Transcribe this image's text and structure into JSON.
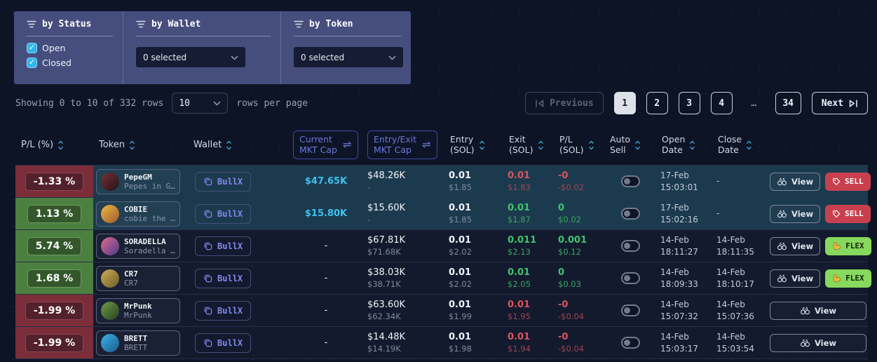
{
  "filters": {
    "status": {
      "title": "by Status",
      "options": [
        {
          "label": "Open",
          "checked": true
        },
        {
          "label": "Closed",
          "checked": true
        }
      ]
    },
    "wallet": {
      "title": "by Wallet",
      "selected": "0 selected"
    },
    "token": {
      "title": "by Token",
      "selected": "0 selected"
    }
  },
  "pagination": {
    "summary": "Showing 0 to 10 of 332 rows",
    "page_size": "10",
    "rows_per_page_label": "rows per page",
    "previous_label": "Previous",
    "next_label": "Next",
    "pages": [
      "1",
      "2",
      "3",
      "4",
      "…",
      "34"
    ],
    "active_page": "1"
  },
  "table": {
    "headers": {
      "pl_pct": "P/L (%)",
      "token": "Token",
      "wallet": "Wallet",
      "current_mkt_cap": {
        "line1": "Current",
        "line2": "MKT Cap",
        "swap_icon": "⇌"
      },
      "entry_exit_mkt_cap": {
        "line1": "Entry/Exit",
        "line2": "MKT Cap",
        "swap_icon": "⇌"
      },
      "entry": {
        "line1": "Entry",
        "line2": "(SOL)"
      },
      "exit": {
        "line1": "Exit",
        "line2": "(SOL)"
      },
      "pl_sol": {
        "line1": "P/L",
        "line2": "(SOL)"
      },
      "auto_sell": {
        "line1": "Auto",
        "line2": "Sell"
      },
      "open_date": {
        "line1": "Open",
        "line2": "Date"
      },
      "close_date": {
        "line1": "Close",
        "line2": "Date"
      }
    },
    "rows": [
      {
        "pl_pct": "-1.33 %",
        "direction": "neg",
        "status": "open",
        "token": {
          "symbol": "PepeGM",
          "name": "Pepes in G…",
          "avatar_colors": [
            "#7a3038",
            "#201318"
          ]
        },
        "wallet": "BullX",
        "current_mkt_cap": "$47.65K",
        "entry_exit_cap": {
          "main": "$48.26K",
          "sub": "-"
        },
        "entry": {
          "sol": "0.01",
          "usd": "$1.85"
        },
        "exit": {
          "sol": "0.01",
          "usd": "$1.83"
        },
        "pl": {
          "sol": "-0",
          "usd": "-$0.02"
        },
        "auto_sell": false,
        "open_date": {
          "date": "17-Feb",
          "time": "15:03:01"
        },
        "close_date": {
          "date": "-",
          "time": ""
        },
        "actions": {
          "view": "View",
          "trade": "SELL",
          "trade_type": "sell"
        }
      },
      {
        "pl_pct": "1.13 %",
        "direction": "pos",
        "status": "open",
        "token": {
          "symbol": "COBIE",
          "name": "cobie the …",
          "avatar_colors": [
            "#efb93f",
            "#9c5a33"
          ]
        },
        "wallet": "BullX",
        "current_mkt_cap": "$15.80K",
        "entry_exit_cap": {
          "main": "$15.60K",
          "sub": "-"
        },
        "entry": {
          "sol": "0.01",
          "usd": "$1.85"
        },
        "exit": {
          "sol": "0.01",
          "usd": "$1.87"
        },
        "pl": {
          "sol": "0",
          "usd": "$0.02"
        },
        "auto_sell": false,
        "open_date": {
          "date": "17-Feb",
          "time": "15:02:16"
        },
        "close_date": {
          "date": "-",
          "time": ""
        },
        "actions": {
          "view": "View",
          "trade": "SELL",
          "trade_type": "sell"
        }
      },
      {
        "pl_pct": "5.74 %",
        "direction": "pos",
        "status": "closed",
        "token": {
          "symbol": "SORADELLA",
          "name": "Soradella …",
          "avatar_colors": [
            "#e06a90",
            "#4a3a8a"
          ]
        },
        "wallet": "BullX",
        "current_mkt_cap": "-",
        "entry_exit_cap": {
          "main": "$67.81K",
          "sub": "$71.68K"
        },
        "entry": {
          "sol": "0.01",
          "usd": "$2.02"
        },
        "exit": {
          "sol": "0.011",
          "usd": "$2.13"
        },
        "pl": {
          "sol": "0.001",
          "usd": "$0.12"
        },
        "auto_sell": false,
        "open_date": {
          "date": "14-Feb",
          "time": "18:11:27"
        },
        "close_date": {
          "date": "14-Feb",
          "time": "18:11:35"
        },
        "actions": {
          "view": "View",
          "trade": "FLEX",
          "trade_type": "flex"
        }
      },
      {
        "pl_pct": "1.68 %",
        "direction": "pos",
        "status": "closed",
        "token": {
          "symbol": "CR7",
          "name": "CR7",
          "avatar_colors": [
            "#cfae55",
            "#6b5a2a"
          ]
        },
        "wallet": "BullX",
        "current_mkt_cap": "-",
        "entry_exit_cap": {
          "main": "$38.03K",
          "sub": "$38.71K"
        },
        "entry": {
          "sol": "0.01",
          "usd": "$2.02"
        },
        "exit": {
          "sol": "0.01",
          "usd": "$2.05"
        },
        "pl": {
          "sol": "0",
          "usd": "$0.03"
        },
        "auto_sell": false,
        "open_date": {
          "date": "14-Feb",
          "time": "18:09:33"
        },
        "close_date": {
          "date": "14-Feb",
          "time": "18:10:17"
        },
        "actions": {
          "view": "View",
          "trade": "FLEX",
          "trade_type": "flex"
        }
      },
      {
        "pl_pct": "-1.99 %",
        "direction": "neg",
        "status": "closed",
        "token": {
          "symbol": "MrPunk",
          "name": "MrPunk",
          "avatar_colors": [
            "#6f9c49",
            "#27401e"
          ]
        },
        "wallet": "BullX",
        "current_mkt_cap": "-",
        "entry_exit_cap": {
          "main": "$63.60K",
          "sub": "$62.34K"
        },
        "entry": {
          "sol": "0.01",
          "usd": "$1.99"
        },
        "exit": {
          "sol": "0.01",
          "usd": "$1.95"
        },
        "pl": {
          "sol": "-0",
          "usd": "-$0.04"
        },
        "auto_sell": false,
        "open_date": {
          "date": "14-Feb",
          "time": "15:07:32"
        },
        "close_date": {
          "date": "14-Feb",
          "time": "15:07:36"
        },
        "actions": {
          "view": "View",
          "trade": null,
          "trade_type": null
        }
      },
      {
        "pl_pct": "-1.99 %",
        "direction": "neg",
        "status": "closed",
        "token": {
          "symbol": "BRETT",
          "name": "BRETT",
          "avatar_colors": [
            "#3cb4e8",
            "#1a5a8a"
          ]
        },
        "wallet": "BullX",
        "current_mkt_cap": "-",
        "entry_exit_cap": {
          "main": "$14.48K",
          "sub": "$14.19K"
        },
        "entry": {
          "sol": "0.01",
          "usd": "$1.98"
        },
        "exit": {
          "sol": "0.01",
          "usd": "$1.94"
        },
        "pl": {
          "sol": "-0",
          "usd": "-$0.04"
        },
        "auto_sell": false,
        "open_date": {
          "date": "14-Feb",
          "time": "15:03:17"
        },
        "close_date": {
          "date": "14-Feb",
          "time": "15:03:54"
        },
        "actions": {
          "view": "View",
          "trade": null,
          "trade_type": null
        }
      }
    ]
  },
  "colors": {
    "sell_red": "#c8404e",
    "flex_green": "#86d95c",
    "pl_neg_bg": "#7b2e39",
    "pl_pos_bg": "#4c8040",
    "link_cyan": "#3fc1f0",
    "bullx_purple": "#8289ee",
    "checkbox_cyan": "#35b6eb",
    "filter_panel_bg": "#454e7d"
  }
}
